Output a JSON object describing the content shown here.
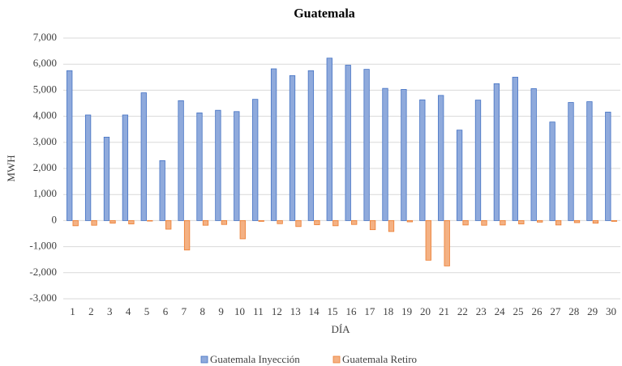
{
  "chart_data": {
    "type": "bar",
    "title": "Guatemala",
    "x_label": "DÍA",
    "y_label": "MWH",
    "categories": [
      "1",
      "2",
      "3",
      "4",
      "5",
      "6",
      "7",
      "8",
      "9",
      "10",
      "11",
      "12",
      "13",
      "14",
      "15",
      "16",
      "17",
      "18",
      "19",
      "20",
      "21",
      "22",
      "23",
      "24",
      "25",
      "26",
      "27",
      "28",
      "29",
      "30"
    ],
    "series": [
      {
        "name": "Guatemala Inyección",
        "color": "#8faadc",
        "edge": "#4472c4",
        "values": [
          5750,
          4050,
          3200,
          4050,
          4900,
          2300,
          4600,
          4130,
          4230,
          4180,
          4650,
          5820,
          5560,
          5750,
          6230,
          5960,
          5800,
          5070,
          5030,
          4630,
          4800,
          3470,
          4620,
          5250,
          5500,
          5060,
          3780,
          4530,
          4560,
          4160
        ]
      },
      {
        "name": "Guatemala Retiro",
        "color": "#f4b183",
        "edge": "#ed7d31",
        "values": [
          -200,
          -180,
          -100,
          -130,
          -20,
          -330,
          -1130,
          -180,
          -150,
          -700,
          -30,
          -120,
          -230,
          -160,
          -200,
          -150,
          -350,
          -420,
          -50,
          -1520,
          -1740,
          -170,
          -180,
          -170,
          -130,
          -60,
          -170,
          -80,
          -100,
          -30
        ]
      }
    ],
    "ylim": [
      -3000,
      7000
    ],
    "yticks": [
      {
        "value": -3000,
        "label": "-3,000"
      },
      {
        "value": -2000,
        "label": "-2,000"
      },
      {
        "value": -1000,
        "label": "-1,000"
      },
      0,
      {
        "value": 1000,
        "label": "1,000"
      },
      {
        "value": 2000,
        "label": "2,000"
      },
      {
        "value": 3000,
        "label": "3,000"
      },
      {
        "value": 4000,
        "label": "4,000"
      },
      {
        "value": 5000,
        "label": "5,000"
      },
      {
        "value": 6000,
        "label": "6,000"
      },
      {
        "value": 7000,
        "label": "7,000"
      }
    ],
    "grid": true,
    "legend": "bottom"
  }
}
